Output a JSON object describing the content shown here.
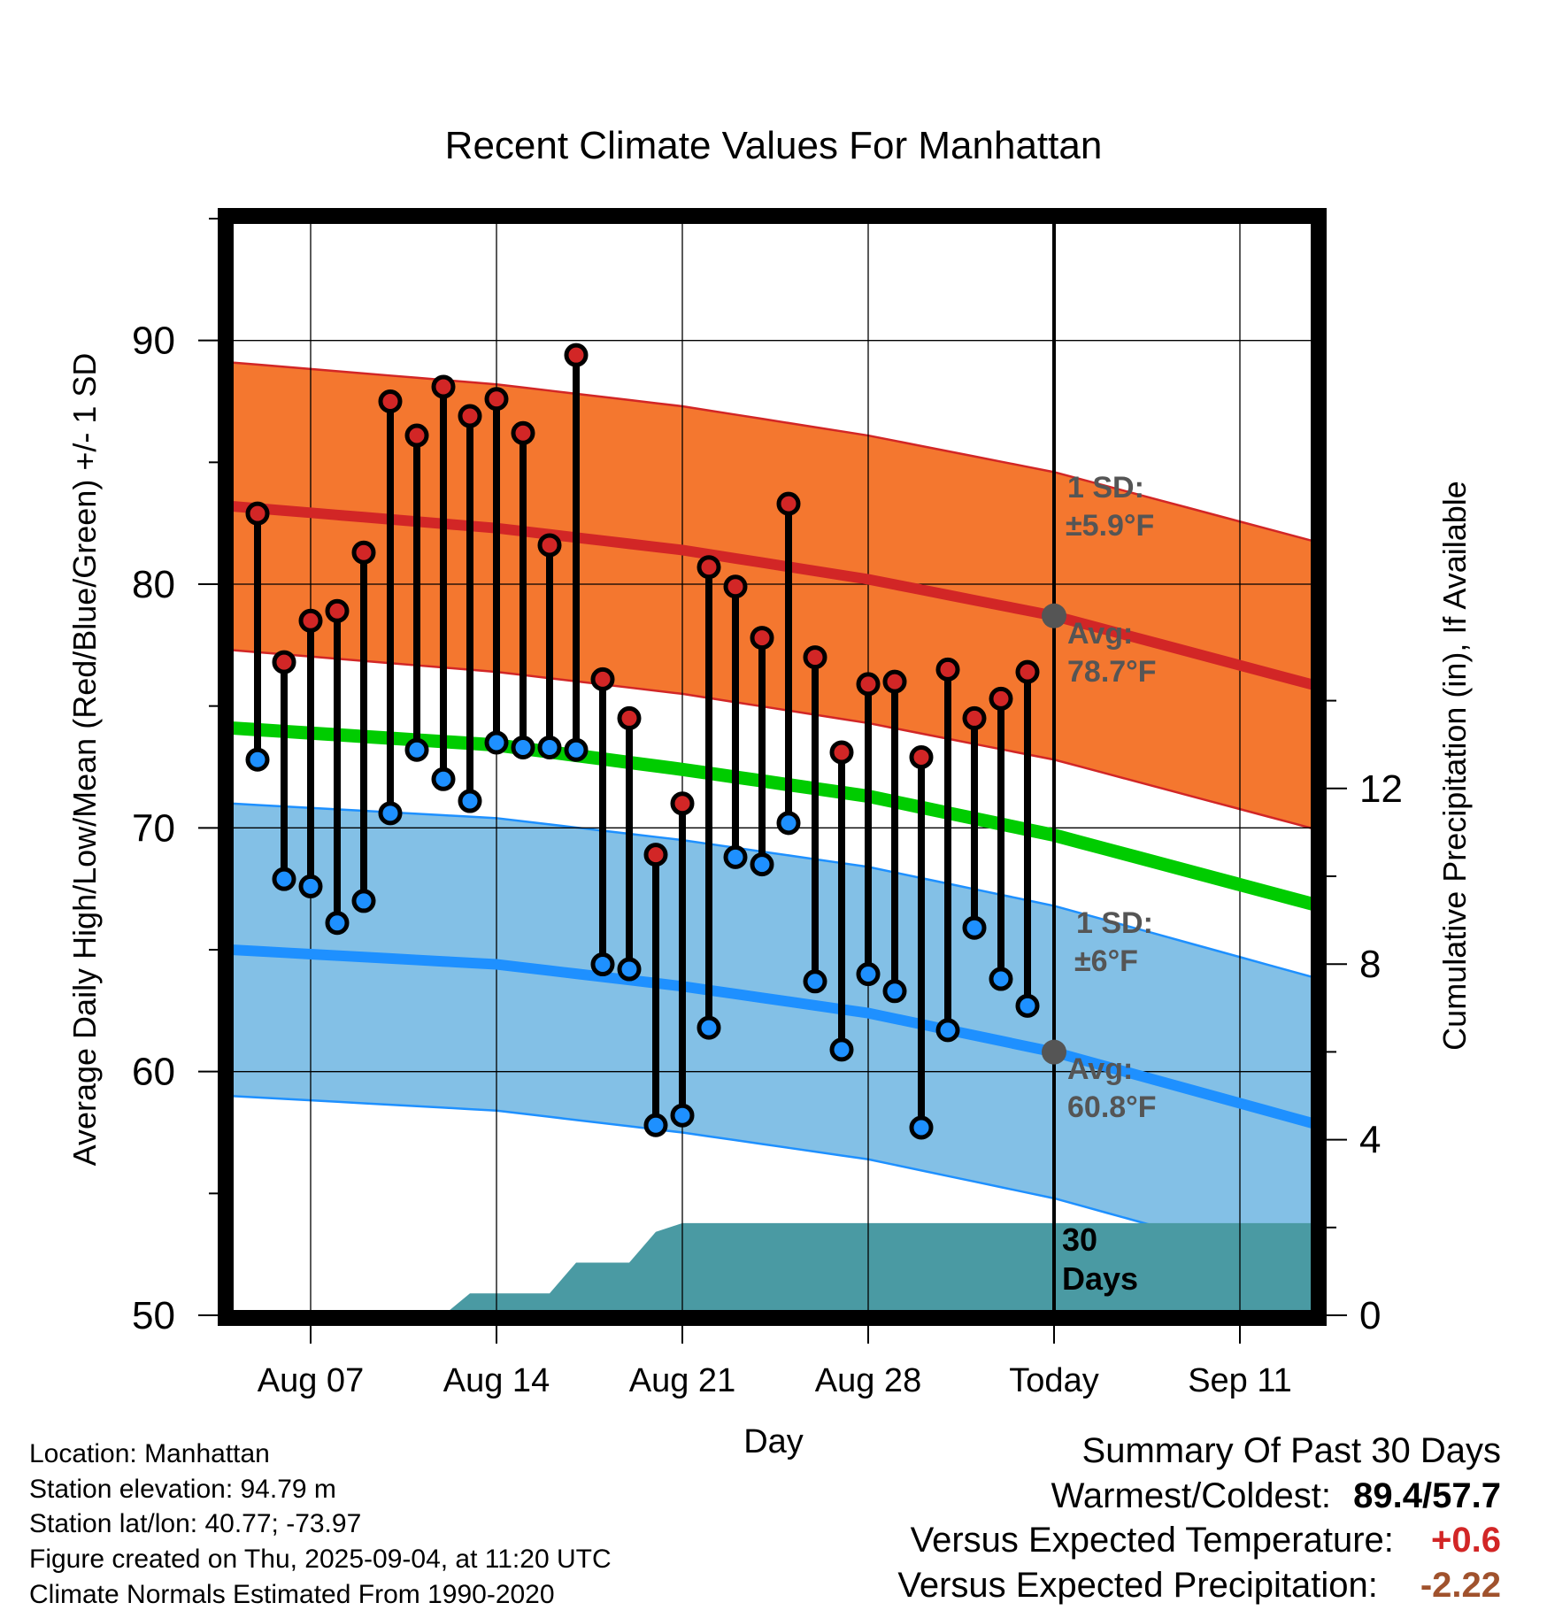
{
  "chart_data": {
    "type": "line",
    "title": "Recent Climate Values For Manhattan",
    "xlabel": "Day",
    "ylabel": "Average Daily High/Low/Mean (Red/Blue/Green) +/- 1 SD",
    "y2label": "Cumulative Precipitation (in), If Available",
    "ylim": [
      50,
      95
    ],
    "y_ticks": [
      "90",
      "80",
      "70",
      "60",
      "50"
    ],
    "y2_ticks": [
      "12",
      "8",
      "4",
      "0"
    ],
    "x_ticks": [
      "Aug 07",
      "Aug 14",
      "Aug 21",
      "Aug 28",
      "Today",
      "Sep 11"
    ],
    "grid": true,
    "days": [
      "Aug 05",
      "Aug 06",
      "Aug 07",
      "Aug 08",
      "Aug 09",
      "Aug 10",
      "Aug 11",
      "Aug 12",
      "Aug 13",
      "Aug 14",
      "Aug 15",
      "Aug 16",
      "Aug 17",
      "Aug 18",
      "Aug 19",
      "Aug 20",
      "Aug 21",
      "Aug 22",
      "Aug 23",
      "Aug 24",
      "Aug 25",
      "Aug 26",
      "Aug 27",
      "Aug 28",
      "Aug 29",
      "Aug 30",
      "Aug 31",
      "Sep 01",
      "Sep 02",
      "Sep 03"
    ],
    "daily_high": [
      82.9,
      76.8,
      78.5,
      78.9,
      81.3,
      87.5,
      86.1,
      88.1,
      86.9,
      87.6,
      86.2,
      81.6,
      89.4,
      76.1,
      74.5,
      68.9,
      71.0,
      80.7,
      79.9,
      77.8,
      83.3,
      77.0,
      73.1,
      75.9,
      76.0,
      72.9,
      76.5,
      74.5,
      75.3,
      76.4
    ],
    "daily_low": [
      72.8,
      67.9,
      67.6,
      66.1,
      67.0,
      70.6,
      73.2,
      72.0,
      71.1,
      73.5,
      73.3,
      73.3,
      73.2,
      64.4,
      64.2,
      57.8,
      58.2,
      61.8,
      68.8,
      68.5,
      70.2,
      63.7,
      60.9,
      64.0,
      63.3,
      57.7,
      61.7,
      65.9,
      63.8,
      62.7
    ],
    "normal_high_avg": {
      "x": [
        "Aug 04",
        "Aug 14",
        "Aug 21",
        "Aug 28",
        "Sep 04",
        "Sep 14"
      ],
      "values": [
        83.2,
        82.3,
        81.4,
        80.2,
        78.7,
        75.8
      ]
    },
    "normal_low_avg": {
      "x": [
        "Aug 04",
        "Aug 14",
        "Aug 21",
        "Aug 28",
        "Sep 04",
        "Sep 14"
      ],
      "values": [
        65.0,
        64.4,
        63.5,
        62.4,
        60.8,
        57.8
      ]
    },
    "normal_mean": {
      "x": [
        "Aug 04",
        "Aug 14",
        "Aug 21",
        "Aug 28",
        "Sep 04",
        "Sep 14"
      ],
      "values": [
        74.1,
        73.4,
        72.4,
        71.3,
        69.7,
        66.8
      ]
    },
    "high_sd": 5.9,
    "low_sd": 6.0,
    "cumulative_precip": {
      "x": [
        "Aug 04",
        "Aug 12",
        "Aug 13",
        "Aug 16",
        "Aug 17",
        "Aug 19",
        "Aug 20",
        "Aug 21",
        "Sep 14"
      ],
      "values": [
        0,
        0,
        0.5,
        0.5,
        1.2,
        1.2,
        1.9,
        2.1,
        2.1
      ]
    },
    "annotations": {
      "high_sd_label": "1 SD:",
      "high_sd_value": "±5.9°F",
      "high_avg_label": "Avg:",
      "high_avg_value": "78.7°F",
      "low_sd_label": "1 SD:",
      "low_sd_value": "±6°F",
      "low_avg_label": "Avg:",
      "low_avg_value": "60.8°F",
      "window_label_1": "30",
      "window_label_2": "Days"
    },
    "colors": {
      "high_band": "#f4772f",
      "high_line": "#d22626",
      "low_band": "#83c0e6",
      "low_line": "#1e90ff",
      "mean_line": "#00cc00",
      "precip": "#4a9aa3",
      "high_marker": "#d22626",
      "low_marker": "#1e90ff"
    }
  },
  "meta": {
    "location": "Location: Manhattan",
    "elevation": "Station elevation: 94.79 m",
    "latlon": "Station lat/lon: 40.77; -73.97",
    "created": "Figure created on Thu, 2025-09-04, at 11:20 UTC",
    "normals": "Climate Normals Estimated From 1990-2020"
  },
  "summary": {
    "title": "Summary Of Past 30 Days",
    "warm_cold_label": "Warmest/Coldest:",
    "warmest": "89.4",
    "slash": "/",
    "coldest": "57.7",
    "temp_label": "Versus Expected Temperature:",
    "temp_value": "+0.6",
    "temp_color": "#d22626",
    "precip_label": "Versus Expected Precipitation:",
    "precip_value": "-2.22",
    "precip_color": "#a0522d"
  }
}
